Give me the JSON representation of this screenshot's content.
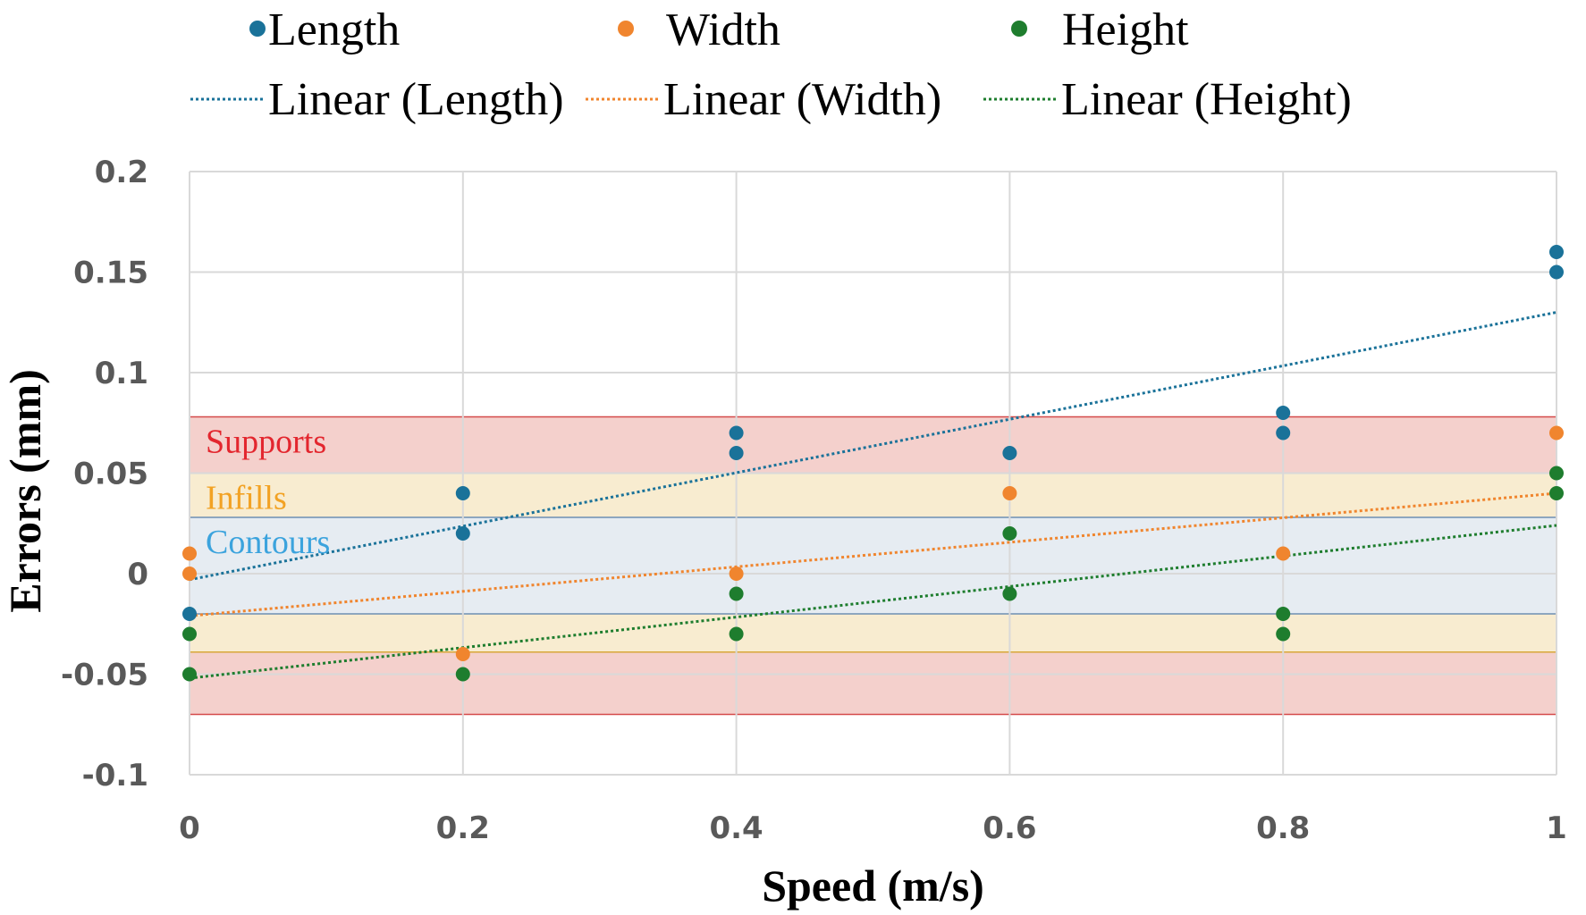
{
  "chart_data": {
    "type": "scatter",
    "xlabel": "Speed (m/s)",
    "ylabel": "Errors (mm)",
    "xlim": [
      0,
      1
    ],
    "ylim": [
      -0.1,
      0.2
    ],
    "xticks": [
      0,
      0.2,
      0.4,
      0.6,
      0.8,
      1
    ],
    "xtick_labels": [
      "0",
      "0.2",
      "0.4",
      "0.6",
      "0.8",
      "1"
    ],
    "yticks": [
      -0.1,
      -0.05,
      0,
      0.05,
      0.1,
      0.15,
      0.2
    ],
    "ytick_labels": [
      "-0.1",
      "-0.05",
      "0",
      "0.05",
      "0.1",
      "0.15",
      "0.2"
    ],
    "grid": true,
    "legend_position": "top",
    "series": [
      {
        "name": "Length",
        "color": "#1a7299",
        "points": [
          [
            0,
            -0.02
          ],
          [
            0.2,
            0.02
          ],
          [
            0.2,
            0.04
          ],
          [
            0.4,
            0.06
          ],
          [
            0.4,
            0.07
          ],
          [
            0.6,
            0.06
          ],
          [
            0.8,
            0.07
          ],
          [
            0.8,
            0.08
          ],
          [
            1,
            0.15
          ],
          [
            1,
            0.16
          ]
        ],
        "trendline": {
          "name": "Linear (Length)",
          "y_start": -0.003,
          "y_end": 0.13
        }
      },
      {
        "name": "Width",
        "color": "#f0852e",
        "points": [
          [
            0,
            0
          ],
          [
            0,
            0.01
          ],
          [
            0.2,
            -0.04
          ],
          [
            0.4,
            0
          ],
          [
            0.6,
            0.04
          ],
          [
            0.8,
            0.01
          ],
          [
            1,
            0.07
          ]
        ],
        "trendline": {
          "name": "Linear (Width)",
          "y_start": -0.021,
          "y_end": 0.04
        }
      },
      {
        "name": "Height",
        "color": "#1e7d2e",
        "points": [
          [
            0,
            -0.03
          ],
          [
            0,
            -0.05
          ],
          [
            0.2,
            -0.05
          ],
          [
            0.4,
            -0.01
          ],
          [
            0.4,
            -0.03
          ],
          [
            0.6,
            0.02
          ],
          [
            0.6,
            -0.01
          ],
          [
            0.8,
            -0.02
          ],
          [
            0.8,
            -0.03
          ],
          [
            1,
            0.04
          ],
          [
            1,
            0.05
          ]
        ],
        "trendline": {
          "name": "Linear (Height)",
          "y_start": -0.052,
          "y_end": 0.024
        }
      }
    ],
    "bands": [
      {
        "name": "Supports",
        "y_range": [
          -0.07,
          0.078
        ],
        "fill": "#f4d0cc",
        "stroke": "#d44a4a",
        "text_color": "#e3262e"
      },
      {
        "name": "Infills",
        "y_range": [
          -0.039,
          0.05
        ],
        "fill": "#f8ecd0",
        "stroke": "#d8a838",
        "text_color": "#f2a224"
      },
      {
        "name": "Contours",
        "y_range": [
          -0.02,
          0.028
        ],
        "fill": "#e6ecf2",
        "stroke": "#6e8fb3",
        "text_color": "#3ba3dd"
      }
    ]
  }
}
